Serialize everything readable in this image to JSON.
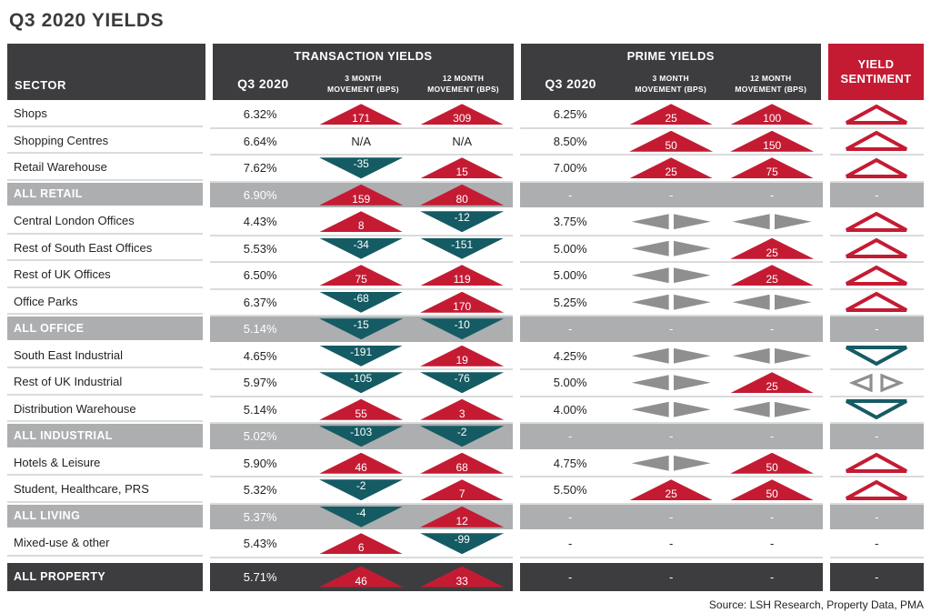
{
  "title": "Q3 2020 YIELDS",
  "source": "Source: LSH Research, Property Data, PMA",
  "colors": {
    "up_red": "#c41b33",
    "down_teal": "#155b64",
    "flat_gray": "#8f8f8f",
    "charcoal": "#3d3d3f",
    "subtotal_gray": "#acaeb0"
  },
  "header": {
    "sector_label": "SECTOR",
    "transaction_group": "TRANSACTION YIELDS",
    "prime_group": "PRIME YIELDS",
    "sentiment_label": "YIELD SENTIMENT",
    "sub_columns": [
      {
        "lines": [
          "Q3 2020"
        ]
      },
      {
        "lines": [
          "3 MONTH",
          "MOVEMENT (BPS)"
        ]
      },
      {
        "lines": [
          "12 MONTH",
          "MOVEMENT (BPS)"
        ]
      }
    ]
  },
  "chart_data": {
    "type": "table",
    "title": "Q3 2020 YIELDS",
    "columns": [
      "SECTOR",
      "TRANSACTION YIELDS Q3 2020",
      "TRANSACTION 3 MONTH MOVEMENT (BPS)",
      "TRANSACTION 12 MONTH MOVEMENT (BPS)",
      "PRIME YIELDS Q3 2020",
      "PRIME 3 MONTH MOVEMENT (BPS)",
      "PRIME 12 MONTH MOVEMENT (BPS)",
      "YIELD SENTIMENT"
    ],
    "legend": {
      "up": "yield rise (red upward triangle)",
      "down": "yield fall (teal downward triangle)",
      "flat": "no movement (grey side arrows)",
      "dash": "no data"
    },
    "rows": [
      {
        "sector": "Shops",
        "style": "normal",
        "t_q3": "6.32%",
        "t_m3": {
          "dir": "up",
          "v": "171"
        },
        "t_m12": {
          "dir": "up",
          "v": "309"
        },
        "p_q3": "6.25%",
        "p_m3": {
          "dir": "up",
          "v": "25"
        },
        "p_m12": {
          "dir": "up",
          "v": "100"
        },
        "sentiment": "up"
      },
      {
        "sector": "Shopping Centres",
        "style": "normal",
        "t_q3": "6.64%",
        "t_m3": {
          "dir": "na",
          "v": "N/A"
        },
        "t_m12": {
          "dir": "na",
          "v": "N/A"
        },
        "p_q3": "8.50%",
        "p_m3": {
          "dir": "up",
          "v": "50"
        },
        "p_m12": {
          "dir": "up",
          "v": "150"
        },
        "sentiment": "up"
      },
      {
        "sector": "Retail Warehouse",
        "style": "normal",
        "t_q3": "7.62%",
        "t_m3": {
          "dir": "down",
          "v": "-35"
        },
        "t_m12": {
          "dir": "up",
          "v": "15"
        },
        "p_q3": "7.00%",
        "p_m3": {
          "dir": "up",
          "v": "25"
        },
        "p_m12": {
          "dir": "up",
          "v": "75"
        },
        "sentiment": "up"
      },
      {
        "sector": "ALL RETAIL",
        "style": "subtotal",
        "t_q3": "6.90%",
        "t_m3": {
          "dir": "up",
          "v": "159"
        },
        "t_m12": {
          "dir": "up",
          "v": "80"
        },
        "p_q3": "-",
        "p_m3": {
          "dir": "dash",
          "v": "-"
        },
        "p_m12": {
          "dir": "dash",
          "v": "-"
        },
        "sentiment": "-"
      },
      {
        "sector": "Central London Offices",
        "style": "normal",
        "t_q3": "4.43%",
        "t_m3": {
          "dir": "up",
          "v": "8"
        },
        "t_m12": {
          "dir": "down",
          "v": "-12"
        },
        "p_q3": "3.75%",
        "p_m3": {
          "dir": "flat"
        },
        "p_m12": {
          "dir": "flat"
        },
        "sentiment": "up"
      },
      {
        "sector": "Rest of South East Offices",
        "style": "normal",
        "t_q3": "5.53%",
        "t_m3": {
          "dir": "down",
          "v": "-34"
        },
        "t_m12": {
          "dir": "down",
          "v": "-151"
        },
        "p_q3": "5.00%",
        "p_m3": {
          "dir": "flat"
        },
        "p_m12": {
          "dir": "up",
          "v": "25"
        },
        "sentiment": "up"
      },
      {
        "sector": "Rest of UK Offices",
        "style": "normal",
        "t_q3": "6.50%",
        "t_m3": {
          "dir": "up",
          "v": "75"
        },
        "t_m12": {
          "dir": "up",
          "v": "119"
        },
        "p_q3": "5.00%",
        "p_m3": {
          "dir": "flat"
        },
        "p_m12": {
          "dir": "up",
          "v": "25"
        },
        "sentiment": "up"
      },
      {
        "sector": "Office Parks",
        "style": "normal",
        "t_q3": "6.37%",
        "t_m3": {
          "dir": "down",
          "v": "-68"
        },
        "t_m12": {
          "dir": "up",
          "v": "170"
        },
        "p_q3": "5.25%",
        "p_m3": {
          "dir": "flat"
        },
        "p_m12": {
          "dir": "flat"
        },
        "sentiment": "up"
      },
      {
        "sector": "ALL OFFICE",
        "style": "subtotal",
        "t_q3": "5.14%",
        "t_m3": {
          "dir": "down",
          "v": "-15"
        },
        "t_m12": {
          "dir": "down",
          "v": "-10"
        },
        "p_q3": "-",
        "p_m3": {
          "dir": "dash",
          "v": "-"
        },
        "p_m12": {
          "dir": "dash",
          "v": "-"
        },
        "sentiment": "-"
      },
      {
        "sector": "South East Industrial",
        "style": "normal",
        "t_q3": "4.65%",
        "t_m3": {
          "dir": "down",
          "v": "-191"
        },
        "t_m12": {
          "dir": "up",
          "v": "19"
        },
        "p_q3": "4.25%",
        "p_m3": {
          "dir": "flat"
        },
        "p_m12": {
          "dir": "flat"
        },
        "sentiment": "down"
      },
      {
        "sector": "Rest of UK Industrial",
        "style": "normal",
        "t_q3": "5.97%",
        "t_m3": {
          "dir": "down",
          "v": "-105"
        },
        "t_m12": {
          "dir": "down",
          "v": "-76"
        },
        "p_q3": "5.00%",
        "p_m3": {
          "dir": "flat"
        },
        "p_m12": {
          "dir": "up",
          "v": "25"
        },
        "sentiment": "flat"
      },
      {
        "sector": "Distribution Warehouse",
        "style": "normal",
        "t_q3": "5.14%",
        "t_m3": {
          "dir": "up",
          "v": "55"
        },
        "t_m12": {
          "dir": "up",
          "v": "3"
        },
        "p_q3": "4.00%",
        "p_m3": {
          "dir": "flat"
        },
        "p_m12": {
          "dir": "flat"
        },
        "sentiment": "down"
      },
      {
        "sector": "ALL INDUSTRIAL",
        "style": "subtotal",
        "t_q3": "5.02%",
        "t_m3": {
          "dir": "down",
          "v": "-103"
        },
        "t_m12": {
          "dir": "down",
          "v": "-2"
        },
        "p_q3": "-",
        "p_m3": {
          "dir": "dash",
          "v": "-"
        },
        "p_m12": {
          "dir": "dash",
          "v": "-"
        },
        "sentiment": "-"
      },
      {
        "sector": "Hotels & Leisure",
        "style": "normal",
        "t_q3": "5.90%",
        "t_m3": {
          "dir": "up",
          "v": "46"
        },
        "t_m12": {
          "dir": "up",
          "v": "68"
        },
        "p_q3": "4.75%",
        "p_m3": {
          "dir": "flat"
        },
        "p_m12": {
          "dir": "up",
          "v": "50"
        },
        "sentiment": "up"
      },
      {
        "sector": "Student, Healthcare, PRS",
        "style": "normal",
        "t_q3": "5.32%",
        "t_m3": {
          "dir": "down",
          "v": "-2"
        },
        "t_m12": {
          "dir": "up",
          "v": "7"
        },
        "p_q3": "5.50%",
        "p_m3": {
          "dir": "up",
          "v": "25"
        },
        "p_m12": {
          "dir": "up",
          "v": "50"
        },
        "sentiment": "up"
      },
      {
        "sector": "ALL LIVING",
        "style": "subtotal",
        "t_q3": "5.37%",
        "t_m3": {
          "dir": "down",
          "v": "-4"
        },
        "t_m12": {
          "dir": "up",
          "v": "12"
        },
        "p_q3": "-",
        "p_m3": {
          "dir": "dash",
          "v": "-"
        },
        "p_m12": {
          "dir": "dash",
          "v": "-"
        },
        "sentiment": "-"
      },
      {
        "sector": "Mixed-use & other",
        "style": "normal",
        "t_q3": "5.43%",
        "t_m3": {
          "dir": "up",
          "v": "6"
        },
        "t_m12": {
          "dir": "down",
          "v": "-99"
        },
        "p_q3": "-",
        "p_m3": {
          "dir": "dash",
          "v": "-"
        },
        "p_m12": {
          "dir": "dash",
          "v": "-"
        },
        "sentiment": "-"
      },
      {
        "sector": "ALL PROPERTY",
        "style": "total",
        "t_q3": "5.71%",
        "t_m3": {
          "dir": "up",
          "v": "46"
        },
        "t_m12": {
          "dir": "up",
          "v": "33"
        },
        "p_q3": "-",
        "p_m3": {
          "dir": "dash",
          "v": "-"
        },
        "p_m12": {
          "dir": "dash",
          "v": "-"
        },
        "sentiment": "-"
      }
    ]
  }
}
